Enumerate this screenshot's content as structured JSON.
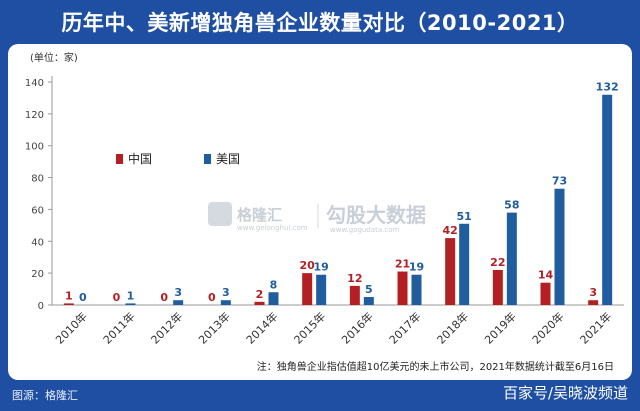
{
  "title": "历年中、美新增独角兽企业数量对比（2010-2021）",
  "unit_label": "(单位：家)",
  "note": "注：独角兽企业指估值超10亿美元的未上市公司，2021年数据统计截至6月16日",
  "source": "图源：格隆汇",
  "credit": "百家号/吴晓波频道",
  "watermark": {
    "brand1": "格隆汇",
    "brand1_url": "www.gelonghui.com",
    "brand2": "勾股大数据",
    "brand2_url": "www.gogudata.com"
  },
  "colors": {
    "china": "#b41f24",
    "usa": "#1f5d9e"
  },
  "chart_data": {
    "type": "bar",
    "categories": [
      "2010年",
      "2011年",
      "2012年",
      "2013年",
      "2014年",
      "2015年",
      "2016年",
      "2017年",
      "2018年",
      "2019年",
      "2020年",
      "2021年"
    ],
    "series": [
      {
        "name": "中国",
        "values": [
          1,
          0,
          0,
          0,
          2,
          20,
          12,
          21,
          42,
          22,
          14,
          3
        ]
      },
      {
        "name": "美国",
        "values": [
          0,
          1,
          3,
          3,
          8,
          19,
          5,
          19,
          51,
          58,
          73,
          132
        ]
      }
    ],
    "ylim": [
      0,
      140
    ],
    "yticks": [
      0,
      20,
      40,
      60,
      80,
      100,
      120,
      140
    ],
    "legend_position": "upper-left",
    "grid": false
  }
}
